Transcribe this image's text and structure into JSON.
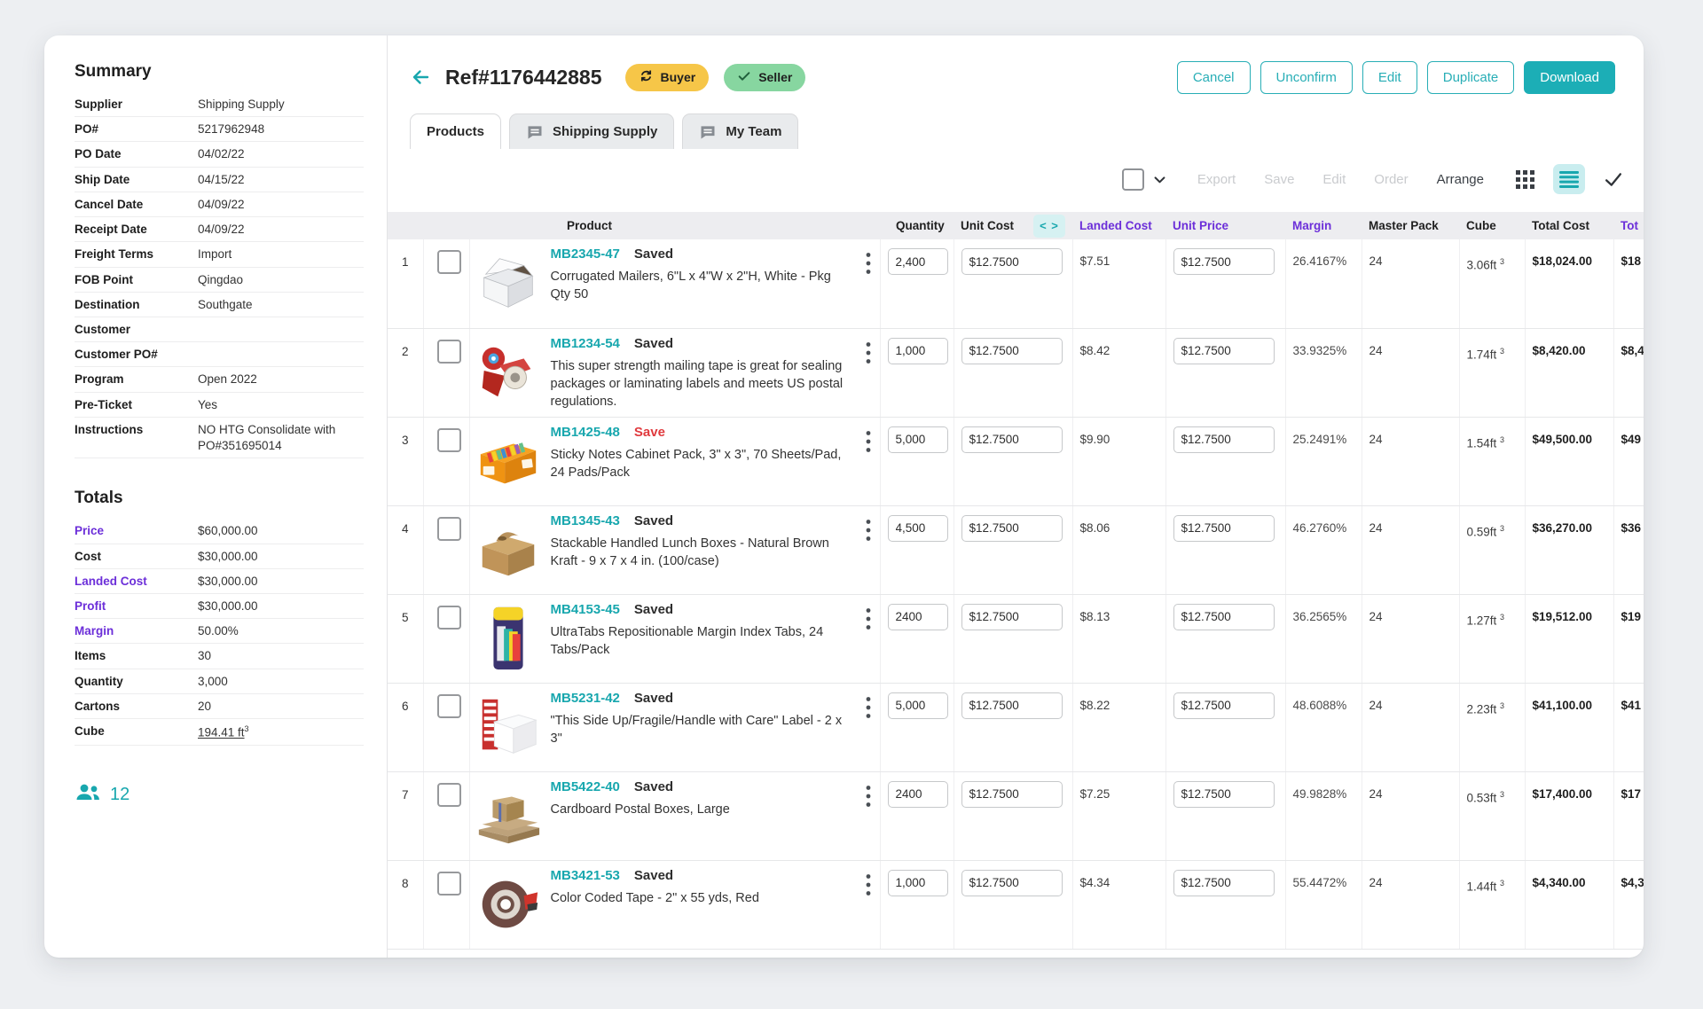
{
  "colors": {
    "teal": "#1caeb6",
    "purple": "#6c2fd9",
    "buyer_badge_bg": "#f6c648",
    "seller_badge_bg": "#87d6a0",
    "status_red": "#e03a3e",
    "active_view_bg": "#c9edef"
  },
  "sidebar": {
    "summary_title": "Summary",
    "fields": [
      {
        "label": "Supplier",
        "value": "Shipping Supply"
      },
      {
        "label": "PO#",
        "value": "5217962948"
      },
      {
        "label": "PO Date",
        "value": "04/02/22"
      },
      {
        "label": "Ship Date",
        "value": "04/15/22"
      },
      {
        "label": "Cancel Date",
        "value": "04/09/22"
      },
      {
        "label": "Receipt Date",
        "value": "04/09/22"
      },
      {
        "label": "Freight Terms",
        "value": "Import"
      },
      {
        "label": "FOB Point",
        "value": "Qingdao"
      },
      {
        "label": "Destination",
        "value": "Southgate"
      },
      {
        "label": "Customer",
        "value": ""
      },
      {
        "label": "Customer PO#",
        "value": ""
      },
      {
        "label": "Program",
        "value": "Open 2022"
      },
      {
        "label": "Pre-Ticket",
        "value": "Yes"
      },
      {
        "label": "Instructions",
        "value": "NO HTG Consolidate with PO#351695014"
      }
    ],
    "totals_title": "Totals",
    "totals": [
      {
        "label": "Price",
        "value": "$60,000.00",
        "accent": true
      },
      {
        "label": "Cost",
        "value": "$30,000.00"
      },
      {
        "label": "Landed Cost",
        "value": "$30,000.00",
        "accent": true
      },
      {
        "label": "Profit",
        "value": "$30,000.00",
        "accent": true
      },
      {
        "label": "Margin",
        "value": "50.00%",
        "accent": true
      },
      {
        "label": "Items",
        "value": "30"
      },
      {
        "label": "Quantity",
        "value": "3,000"
      },
      {
        "label": "Cartons",
        "value": "20"
      },
      {
        "label": "Cube",
        "value": "194.41 ft",
        "sup": "3",
        "underline": true
      }
    ],
    "members_icon": "people-icon",
    "members_count": "12"
  },
  "header": {
    "back_icon": "arrow-left-icon",
    "title": "Ref#1176442885",
    "badges": [
      {
        "label": "Buyer",
        "icon": "sync-icon",
        "bg": "#f6c648"
      },
      {
        "label": "Seller",
        "icon": "seller-check-icon",
        "bg": "#87d6a0"
      }
    ],
    "actions": [
      {
        "label": "Cancel",
        "style": "outline"
      },
      {
        "label": "Unconfirm",
        "style": "outline"
      },
      {
        "label": "Edit",
        "style": "outline"
      },
      {
        "label": "Duplicate",
        "style": "outline"
      },
      {
        "label": "Download",
        "style": "filled"
      }
    ]
  },
  "tabs": [
    {
      "label": "Products",
      "active": true
    },
    {
      "label": "Shipping Supply",
      "icon": "chat-icon",
      "active": false
    },
    {
      "label": "My Team",
      "icon": "chat-icon",
      "active": false
    }
  ],
  "toolbar": {
    "select_checkbox_icon": "checkbox-icon",
    "select_chevron_icon": "chevron-down-icon",
    "links": [
      {
        "label": "Export",
        "disabled": true
      },
      {
        "label": "Save",
        "disabled": true
      },
      {
        "label": "Edit",
        "disabled": true
      },
      {
        "label": "Order",
        "disabled": true
      },
      {
        "label": "Arrange",
        "disabled": false
      }
    ],
    "view_icons": [
      {
        "icon": "grid-view-icon",
        "active": false
      },
      {
        "icon": "list-view-icon",
        "active": true
      },
      {
        "icon": "confirm-check-icon",
        "active": false
      }
    ]
  },
  "table": {
    "columns": [
      {
        "key": "product",
        "label": "Product"
      },
      {
        "key": "quantity",
        "label": "Quantity"
      },
      {
        "key": "unit_cost",
        "label": "Unit Cost",
        "expander": true,
        "expander_icon": "expand-columns-icon"
      },
      {
        "key": "landed_cost",
        "label": "Landed Cost",
        "accent": true
      },
      {
        "key": "unit_price",
        "label": "Unit Price",
        "accent": true
      },
      {
        "key": "margin",
        "label": "Margin",
        "accent": true
      },
      {
        "key": "master_pack",
        "label": "Master Pack"
      },
      {
        "key": "cube",
        "label": "Cube"
      },
      {
        "key": "total_cost",
        "label": "Total Cost"
      },
      {
        "key": "total_price",
        "label": "Tot",
        "accent": true
      }
    ],
    "rows": [
      {
        "num": "1",
        "code": "MB2345-47",
        "status": "Saved",
        "status_color": "dark",
        "image": "mailer-box",
        "description": "Corrugated Mailers, 6\"L x 4\"W x 2\"H, White - Pkg Qty 50",
        "quantity": "2,400",
        "unit_cost": "$12.7500",
        "landed_cost": "$7.51",
        "unit_price": "$12.7500",
        "margin": "26.4167%",
        "master_pack": "24",
        "cube": "3.06ft",
        "cube_sup": "3",
        "total_cost": "$18,024.00",
        "total_price": "$18"
      },
      {
        "num": "2",
        "code": "MB1234-54",
        "status": "Saved",
        "status_color": "dark",
        "image": "tape-dispenser",
        "description": "This super strength mailing tape is great for sealing packages or laminating labels and meets US postal regulations.",
        "quantity": "1,000",
        "unit_cost": "$12.7500",
        "landed_cost": "$8.42",
        "unit_price": "$12.7500",
        "margin": "33.9325%",
        "master_pack": "24",
        "cube": "1.74ft",
        "cube_sup": "3",
        "total_cost": "$8,420.00",
        "total_price": "$8,4"
      },
      {
        "num": "3",
        "code": "MB1425-48",
        "status": "Save",
        "status_color": "red",
        "image": "sticky-notes",
        "description": "Sticky Notes Cabinet Pack, 3\" x 3\", 70 Sheets/Pad, 24 Pads/Pack",
        "quantity": "5,000",
        "unit_cost": "$12.7500",
        "landed_cost": "$9.90",
        "unit_price": "$12.7500",
        "margin": "25.2491%",
        "master_pack": "24",
        "cube": "1.54ft",
        "cube_sup": "3",
        "total_cost": "$49,500.00",
        "total_price": "$49"
      },
      {
        "num": "4",
        "code": "MB1345-43",
        "status": "Saved",
        "status_color": "dark",
        "image": "gable-box",
        "description": "Stackable Handled Lunch Boxes - Natural Brown Kraft - 9 x 7 x 4 in. (100/case)",
        "quantity": "4,500",
        "unit_cost": "$12.7500",
        "landed_cost": "$8.06",
        "unit_price": "$12.7500",
        "margin": "46.2760%",
        "master_pack": "24",
        "cube": "0.59ft",
        "cube_sup": "3",
        "total_cost": "$36,270.00",
        "total_price": "$36"
      },
      {
        "num": "5",
        "code": "MB4153-45",
        "status": "Saved",
        "status_color": "dark",
        "image": "index-tabs",
        "description": "UltraTabs Repositionable Margin Index Tabs, 24 Tabs/Pack",
        "quantity": "2400",
        "unit_cost": "$12.7500",
        "landed_cost": "$8.13",
        "unit_price": "$12.7500",
        "margin": "36.2565%",
        "master_pack": "24",
        "cube": "1.27ft",
        "cube_sup": "3",
        "total_cost": "$19,512.00",
        "total_price": "$19"
      },
      {
        "num": "6",
        "code": "MB5231-42",
        "status": "Saved",
        "status_color": "dark",
        "image": "label-box",
        "description": "\"This Side Up/Fragile/Handle with Care\" Label - 2 x 3\"",
        "quantity": "5,000",
        "unit_cost": "$12.7500",
        "landed_cost": "$8.22",
        "unit_price": "$12.7500",
        "margin": "48.6088%",
        "master_pack": "24",
        "cube": "2.23ft",
        "cube_sup": "3",
        "total_cost": "$41,100.00",
        "total_price": "$41"
      },
      {
        "num": "7",
        "code": "MB5422-40",
        "status": "Saved",
        "status_color": "dark",
        "image": "postal-boxes",
        "description": "Cardboard Postal Boxes, Large",
        "quantity": "2400",
        "unit_cost": "$12.7500",
        "landed_cost": "$7.25",
        "unit_price": "$12.7500",
        "margin": "49.9828%",
        "master_pack": "24",
        "cube": "0.53ft",
        "cube_sup": "3",
        "total_cost": "$17,400.00",
        "total_price": "$17"
      },
      {
        "num": "8",
        "code": "MB3421-53",
        "status": "Saved",
        "status_color": "dark",
        "image": "tape-roll",
        "description": "Color Coded Tape - 2\" x 55 yds, Red",
        "quantity": "1,000",
        "unit_cost": "$12.7500",
        "landed_cost": "$4.34",
        "unit_price": "$12.7500",
        "margin": "55.4472%",
        "master_pack": "24",
        "cube": "1.44ft",
        "cube_sup": "3",
        "total_cost": "$4,340.00",
        "total_price": "$4,3"
      }
    ]
  }
}
